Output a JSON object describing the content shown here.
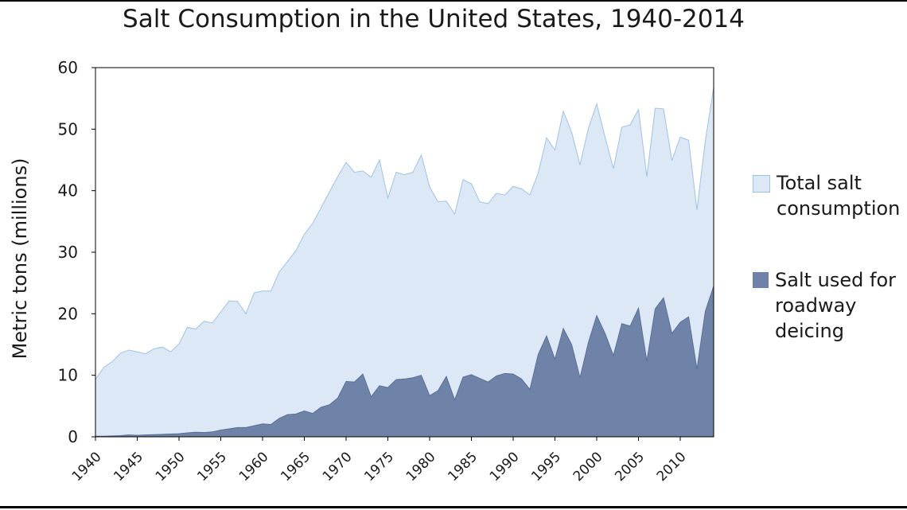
{
  "chart_data": {
    "type": "area",
    "title": "Salt Consumption in the United States, 1940-2014",
    "xlabel": "",
    "ylabel": "Metric tons (millions)",
    "ylim": [
      0,
      60
    ],
    "yticks": [
      "0",
      "10",
      "20",
      "30",
      "40",
      "50",
      "60"
    ],
    "xlim": [
      1940,
      2014
    ],
    "xticks": [
      "1940",
      "1945",
      "1950",
      "1955",
      "1960",
      "1965",
      "1970",
      "1975",
      "1980",
      "1985",
      "1990",
      "1995",
      "2000",
      "2005",
      "2010"
    ],
    "grid": false,
    "legend_position": "right",
    "x": [
      1940,
      1941,
      1942,
      1943,
      1944,
      1945,
      1946,
      1947,
      1948,
      1949,
      1950,
      1951,
      1952,
      1953,
      1954,
      1955,
      1956,
      1957,
      1958,
      1959,
      1960,
      1961,
      1962,
      1963,
      1964,
      1965,
      1966,
      1967,
      1968,
      1969,
      1970,
      1971,
      1972,
      1973,
      1974,
      1975,
      1976,
      1977,
      1978,
      1979,
      1980,
      1981,
      1982,
      1983,
      1984,
      1985,
      1986,
      1987,
      1988,
      1989,
      1990,
      1991,
      1992,
      1993,
      1994,
      1995,
      1996,
      1997,
      1998,
      1999,
      2000,
      2001,
      2002,
      2003,
      2004,
      2005,
      2006,
      2007,
      2008,
      2009,
      2010,
      2011,
      2012,
      2013,
      2014
    ],
    "series": [
      {
        "name": "Total salt consumption",
        "color": "#dce8f5",
        "stroke": "#9ec3e3",
        "values": [
          9.3,
          11.3,
          12.2,
          13.6,
          14.1,
          13.8,
          13.5,
          14.3,
          14.6,
          13.8,
          15.1,
          17.8,
          17.5,
          18.8,
          18.5,
          20.3,
          22.1,
          22.0,
          20.0,
          23.4,
          23.7,
          23.7,
          26.8,
          28.5,
          30.3,
          32.9,
          34.7,
          37.2,
          39.8,
          42.3,
          44.6,
          43.0,
          43.2,
          42.2,
          45.0,
          38.8,
          43.0,
          42.6,
          43.0,
          45.8,
          40.6,
          38.2,
          38.3,
          36.2,
          41.8,
          41.1,
          38.2,
          37.9,
          39.6,
          39.3,
          40.7,
          40.3,
          39.3,
          42.9,
          48.6,
          46.6,
          52.9,
          49.5,
          44.2,
          50.1,
          54.1,
          48.7,
          43.6,
          50.3,
          50.7,
          53.2,
          42.3,
          53.4,
          53.3,
          44.9,
          48.7,
          48.2,
          36.9,
          48.1,
          56.8
        ]
      },
      {
        "name": "Salt used for roadway deicing",
        "color": "#6e83a7",
        "stroke": "#5a6f95",
        "values": [
          0.1,
          0.1,
          0.15,
          0.2,
          0.3,
          0.25,
          0.3,
          0.35,
          0.4,
          0.45,
          0.5,
          0.65,
          0.75,
          0.7,
          0.8,
          1.1,
          1.3,
          1.5,
          1.5,
          1.8,
          2.1,
          2.0,
          3.0,
          3.6,
          3.7,
          4.2,
          3.8,
          4.8,
          5.2,
          6.3,
          9.0,
          8.9,
          10.2,
          6.5,
          8.3,
          8.0,
          9.3,
          9.4,
          9.6,
          10.0,
          6.7,
          7.5,
          9.8,
          6.0,
          9.7,
          10.1,
          9.5,
          8.9,
          9.9,
          10.3,
          10.2,
          9.4,
          7.7,
          13.4,
          16.4,
          12.6,
          17.6,
          15.0,
          9.6,
          15.3,
          19.7,
          16.8,
          13.2,
          18.4,
          18.0,
          20.9,
          12.3,
          20.8,
          22.6,
          16.8,
          18.6,
          19.5,
          11.0,
          20.4,
          24.5
        ]
      }
    ]
  }
}
